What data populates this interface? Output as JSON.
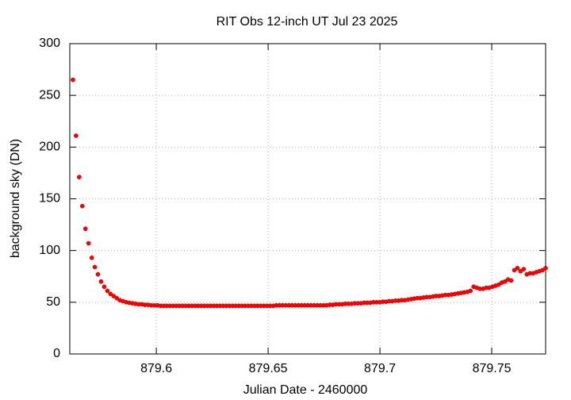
{
  "chart_data": {
    "type": "scatter",
    "title": "RIT Obs 12-inch UT Jul 23 2025",
    "x_label": "Julian Date - 2460000",
    "y_label": "background sky (DN)",
    "xlim": [
      879.5613,
      879.7741
    ],
    "ylim": [
      0,
      300
    ],
    "xticks": [
      879.6,
      879.65,
      879.7,
      879.75
    ],
    "yticks": [
      0,
      50,
      100,
      150,
      200,
      250,
      300
    ],
    "grid": true,
    "color": "#ff0000",
    "x": [
      879.5627,
      879.5641,
      879.5655,
      879.5669,
      879.5683,
      879.5697,
      879.5711,
      879.5725,
      879.5739,
      879.5753,
      879.5767,
      879.5781,
      879.5795,
      879.5809,
      879.5823,
      879.5837,
      879.5851,
      879.5865,
      879.5879,
      879.5893,
      879.5907,
      879.5921,
      879.5935,
      879.5949,
      879.5963,
      879.5977,
      879.5991,
      879.6005,
      879.6019,
      879.6033,
      879.6047,
      879.6061,
      879.6075,
      879.6089,
      879.6103,
      879.6117,
      879.6131,
      879.6145,
      879.6159,
      879.6173,
      879.6187,
      879.6201,
      879.6215,
      879.6229,
      879.6243,
      879.6257,
      879.6271,
      879.6285,
      879.6299,
      879.6313,
      879.6327,
      879.6341,
      879.6355,
      879.6369,
      879.6383,
      879.6397,
      879.6411,
      879.6425,
      879.6439,
      879.6453,
      879.6467,
      879.6481,
      879.6495,
      879.6509,
      879.6523,
      879.6537,
      879.6551,
      879.6565,
      879.6579,
      879.6593,
      879.6607,
      879.6621,
      879.6635,
      879.6649,
      879.6663,
      879.6677,
      879.6691,
      879.6705,
      879.6719,
      879.6733,
      879.6747,
      879.6761,
      879.6775,
      879.6789,
      879.6803,
      879.6817,
      879.6831,
      879.6845,
      879.6859,
      879.6873,
      879.6887,
      879.6901,
      879.6915,
      879.6929,
      879.6943,
      879.6957,
      879.6971,
      879.6985,
      879.6999,
      879.7013,
      879.7027,
      879.7041,
      879.7055,
      879.7069,
      879.7083,
      879.7097,
      879.7111,
      879.7125,
      879.7139,
      879.7153,
      879.7167,
      879.7181,
      879.7195,
      879.7209,
      879.7223,
      879.7237,
      879.7251,
      879.7265,
      879.7279,
      879.7293,
      879.7307,
      879.7321,
      879.7335,
      879.7349,
      879.7363,
      879.7377,
      879.7391,
      879.7405,
      879.7419,
      879.7433,
      879.7447,
      879.7461,
      879.7475,
      879.7489,
      879.7503,
      879.7517,
      879.7531,
      879.7545,
      879.7559,
      879.7573,
      879.7587,
      879.7601,
      879.7615,
      879.7629,
      879.7643,
      879.7657,
      879.7671,
      879.7685,
      879.7699,
      879.7713,
      879.7727,
      879.7741
    ],
    "values": [
      265,
      211,
      171,
      143,
      121,
      107,
      93,
      84,
      77,
      70,
      65,
      61,
      58,
      56,
      54,
      52,
      51,
      50,
      49.5,
      49,
      48.5,
      48,
      48,
      47.5,
      47.5,
      47,
      47,
      47,
      46.5,
      46.5,
      46.5,
      46.5,
      46.5,
      46.5,
      46.5,
      46.5,
      46.5,
      46.5,
      46.5,
      46.5,
      46.5,
      46.5,
      46.5,
      46.5,
      46.5,
      46.5,
      46.5,
      46.5,
      46.5,
      46.5,
      46.5,
      46.5,
      46.5,
      46.5,
      46.5,
      46.5,
      46.5,
      46.5,
      46.5,
      46.5,
      46.5,
      46.5,
      46.5,
      46.5,
      46.5,
      47,
      47,
      47,
      47,
      47,
      47,
      47,
      47,
      47,
      47,
      47,
      47,
      47,
      47,
      47,
      47,
      47,
      47.5,
      47.5,
      48,
      48,
      48,
      48.5,
      48.5,
      48.5,
      49,
      49,
      49,
      49.5,
      49.5,
      49.5,
      50,
      50,
      50,
      50.5,
      50.5,
      51,
      51,
      51.5,
      51.5,
      52,
      52,
      52.5,
      53,
      53.5,
      54,
      54,
      54.5,
      55,
      55,
      55.5,
      56,
      56,
      56.5,
      57,
      57,
      57.5,
      58,
      58.5,
      59,
      59.5,
      60,
      61,
      65,
      64,
      63,
      63,
      64,
      64,
      65,
      66,
      67,
      69,
      70,
      72,
      71,
      81,
      83,
      80,
      82,
      77,
      78,
      78,
      79,
      80,
      81,
      83
    ]
  }
}
